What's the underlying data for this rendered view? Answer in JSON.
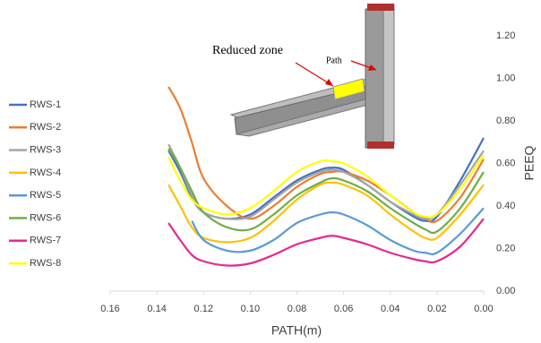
{
  "chart_data": {
    "type": "line",
    "x_label": "PATH(m)",
    "y_label": "PEEQ",
    "annotations": [
      "Reduced zone",
      "Path"
    ],
    "x": [
      0.135,
      0.13,
      0.125,
      0.12,
      0.11,
      0.1,
      0.09,
      0.08,
      0.07,
      0.065,
      0.06,
      0.05,
      0.04,
      0.03,
      0.025,
      0.02,
      0.01,
      0.0
    ],
    "series": [
      {
        "name": "RWS-1",
        "color": "#4472c4",
        "values": [
          0.66,
          0.56,
          0.44,
          0.37,
          0.34,
          0.36,
          0.44,
          0.52,
          0.57,
          0.58,
          0.57,
          0.5,
          0.42,
          0.35,
          0.33,
          0.35,
          0.52,
          0.72
        ]
      },
      {
        "name": "RWS-2",
        "color": "#ed7d31",
        "values": [
          0.96,
          0.86,
          0.7,
          0.53,
          0.4,
          0.34,
          0.4,
          0.49,
          0.55,
          0.56,
          0.56,
          0.52,
          0.45,
          0.37,
          0.34,
          0.33,
          0.44,
          0.62
        ]
      },
      {
        "name": "RWS-3",
        "color": "#a5a5a5",
        "values": [
          0.69,
          0.58,
          0.45,
          0.37,
          0.34,
          0.35,
          0.43,
          0.51,
          0.56,
          0.57,
          0.56,
          0.5,
          0.42,
          0.36,
          0.34,
          0.36,
          0.5,
          0.66
        ]
      },
      {
        "name": "RWS-4",
        "color": "#ffc000",
        "values": [
          0.5,
          0.4,
          0.3,
          0.25,
          0.23,
          0.25,
          0.33,
          0.43,
          0.5,
          0.51,
          0.5,
          0.45,
          0.36,
          0.28,
          0.25,
          0.25,
          0.36,
          0.5
        ]
      },
      {
        "name": "RWS-5",
        "color": "#5b9bd5",
        "values": [
          null,
          null,
          0.33,
          0.24,
          0.19,
          0.19,
          0.24,
          0.32,
          0.36,
          0.37,
          0.36,
          0.31,
          0.24,
          0.19,
          0.18,
          0.18,
          0.27,
          0.39
        ]
      },
      {
        "name": "RWS-6",
        "color": "#70ad47",
        "values": [
          0.67,
          0.58,
          0.47,
          0.37,
          0.3,
          0.29,
          0.36,
          0.45,
          0.51,
          0.53,
          0.52,
          0.47,
          0.39,
          0.32,
          0.29,
          0.28,
          0.39,
          0.56
        ]
      },
      {
        "name": "RWS-7",
        "color": "#e8288c",
        "values": [
          0.32,
          0.24,
          0.17,
          0.14,
          0.12,
          0.13,
          0.17,
          0.22,
          0.25,
          0.26,
          0.25,
          0.22,
          0.18,
          0.15,
          0.14,
          0.14,
          0.21,
          0.34
        ]
      },
      {
        "name": "RWS-8",
        "color": "#ffff00",
        "values": [
          0.63,
          0.52,
          0.43,
          0.39,
          0.36,
          0.39,
          0.47,
          0.56,
          0.61,
          0.61,
          0.6,
          0.54,
          0.45,
          0.37,
          0.35,
          0.36,
          0.48,
          0.64
        ]
      }
    ],
    "xlim": [
      0.16,
      0.0
    ],
    "xticks": [
      0.16,
      0.14,
      0.12,
      {
        "value": 0.1,
        "label": "0.10"
      },
      0.08,
      0.06,
      0.04,
      0.02,
      {
        "value": 0,
        "label": "0.00"
      }
    ],
    "ylim": [
      0,
      1.2
    ],
    "yticks": [
      {
        "value": 0,
        "label": "0.00"
      },
      {
        "value": 0.2,
        "label": "0.20"
      },
      {
        "value": 0.4,
        "label": "0.40"
      },
      {
        "value": 0.6,
        "label": "0.60"
      },
      {
        "value": 0.8,
        "label": "0.80"
      },
      {
        "value": 1.0,
        "label": "1.00"
      },
      {
        "value": 1.2,
        "label": "1.20"
      }
    ],
    "y_axis_side": "right",
    "grid": false,
    "legend": "left"
  }
}
